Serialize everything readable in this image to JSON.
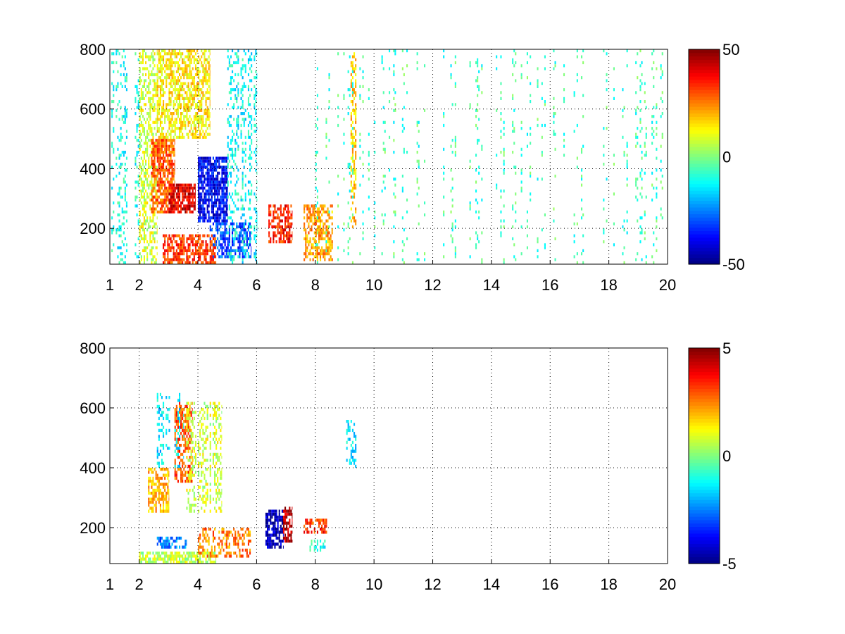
{
  "chart_data": [
    {
      "type": "heatmap",
      "title": "",
      "xlabel": "",
      "ylabel": "",
      "xlim": [
        1,
        20
      ],
      "ylim": [
        80,
        800
      ],
      "x_ticks": [
        "1",
        "2",
        "4",
        "6",
        "8",
        "10",
        "12",
        "14",
        "16",
        "18",
        "20"
      ],
      "y_ticks": [
        "200",
        "400",
        "600",
        "800"
      ],
      "grid": true,
      "colormap": "jet",
      "colorbar": {
        "range": [
          -50,
          50
        ],
        "tick_labels": [
          "50",
          "0",
          "-50"
        ]
      },
      "regions": [
        {
          "x": [
            1.0,
            2.0
          ],
          "y": [
            80,
            800
          ],
          "v": -10,
          "density": 0.25
        },
        {
          "x": [
            2.0,
            2.6
          ],
          "y": [
            80,
            800
          ],
          "v": 8,
          "density": 0.45
        },
        {
          "x": [
            2.4,
            3.2
          ],
          "y": [
            250,
            500
          ],
          "v": 28,
          "density": 0.75
        },
        {
          "x": [
            3.0,
            3.9
          ],
          "y": [
            250,
            350
          ],
          "v": 40,
          "density": 0.85
        },
        {
          "x": [
            2.6,
            4.4
          ],
          "y": [
            500,
            800
          ],
          "v": 14,
          "density": 0.6
        },
        {
          "x": [
            4.0,
            5.0
          ],
          "y": [
            220,
            440
          ],
          "v": -38,
          "density": 0.8
        },
        {
          "x": [
            4.4,
            5.8
          ],
          "y": [
            100,
            220
          ],
          "v": -30,
          "density": 0.55
        },
        {
          "x": [
            2.8,
            4.6
          ],
          "y": [
            80,
            180
          ],
          "v": 32,
          "density": 0.65
        },
        {
          "x": [
            5.0,
            6.0
          ],
          "y": [
            80,
            800
          ],
          "v": -12,
          "density": 0.3
        },
        {
          "x": [
            6.4,
            7.2
          ],
          "y": [
            150,
            280
          ],
          "v": 35,
          "density": 0.6
        },
        {
          "x": [
            7.6,
            8.6
          ],
          "y": [
            90,
            280
          ],
          "v": 22,
          "density": 0.55
        },
        {
          "x": [
            9.2,
            9.4
          ],
          "y": [
            200,
            800
          ],
          "v": 18,
          "density": 0.5
        },
        {
          "x": [
            8.0,
            20.0
          ],
          "y": [
            80,
            800
          ],
          "v": -6,
          "density": 0.14
        }
      ]
    },
    {
      "type": "heatmap",
      "title": "",
      "xlabel": "",
      "ylabel": "",
      "xlim": [
        1,
        20
      ],
      "ylim": [
        80,
        800
      ],
      "x_ticks": [
        "1",
        "2",
        "4",
        "6",
        "8",
        "10",
        "12",
        "14",
        "16",
        "18",
        "20"
      ],
      "y_ticks": [
        "200",
        "400",
        "600",
        "800"
      ],
      "grid": true,
      "colormap": "jet",
      "colorbar": {
        "range": [
          -5,
          5
        ],
        "tick_labels": [
          "5",
          "0",
          "-5"
        ]
      },
      "regions": [
        {
          "x": [
            2.3,
            3.0
          ],
          "y": [
            250,
            400
          ],
          "v": 2,
          "density": 0.6
        },
        {
          "x": [
            3.2,
            3.8
          ],
          "y": [
            350,
            620
          ],
          "v": 3,
          "density": 0.5
        },
        {
          "x": [
            2.6,
            3.5
          ],
          "y": [
            400,
            650
          ],
          "v": -1.5,
          "density": 0.3
        },
        {
          "x": [
            3.6,
            4.8
          ],
          "y": [
            250,
            620
          ],
          "v": 0.8,
          "density": 0.4
        },
        {
          "x": [
            2.0,
            4.6
          ],
          "y": [
            80,
            120
          ],
          "v": 0.6,
          "density": 0.75
        },
        {
          "x": [
            2.6,
            3.6
          ],
          "y": [
            130,
            170
          ],
          "v": -2.5,
          "density": 0.6
        },
        {
          "x": [
            4.0,
            5.8
          ],
          "y": [
            100,
            200
          ],
          "v": 2.5,
          "density": 0.45
        },
        {
          "x": [
            6.3,
            6.9
          ],
          "y": [
            130,
            260
          ],
          "v": -4.5,
          "density": 0.65
        },
        {
          "x": [
            6.9,
            7.2
          ],
          "y": [
            150,
            270
          ],
          "v": 4.5,
          "density": 0.6
        },
        {
          "x": [
            7.6,
            8.4
          ],
          "y": [
            180,
            230
          ],
          "v": 3.2,
          "density": 0.55
        },
        {
          "x": [
            7.8,
            8.4
          ],
          "y": [
            120,
            160
          ],
          "v": -1,
          "density": 0.45
        },
        {
          "x": [
            9.0,
            9.4
          ],
          "y": [
            400,
            560
          ],
          "v": -1.5,
          "density": 0.3
        }
      ]
    }
  ]
}
